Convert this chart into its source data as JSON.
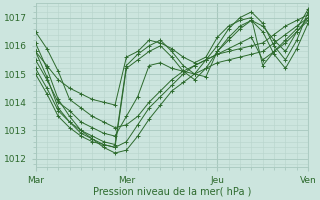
{
  "xlabel": "Pression niveau de la mer( hPa )",
  "ylim": [
    1011.7,
    1017.5
  ],
  "xlim": [
    0,
    72
  ],
  "yticks": [
    1012,
    1013,
    1014,
    1015,
    1016,
    1017
  ],
  "xtick_labels": [
    "Mar",
    "Mer",
    "Jeu",
    "Ven"
  ],
  "xtick_positions": [
    0,
    24,
    48,
    72
  ],
  "line_color": "#2d6a2d",
  "marker": "+",
  "bg_color": "#cce5de",
  "grid_minor_color": "#b8d4cc",
  "grid_major_color": "#a8c8be",
  "lines": [
    [
      0,
      1016.5,
      3,
      1015.9,
      6,
      1015.1,
      9,
      1014.1,
      12,
      1013.8,
      15,
      1013.5,
      18,
      1013.3,
      21,
      1013.1,
      24,
      1013.2,
      27,
      1013.5,
      30,
      1014.0,
      33,
      1014.4,
      36,
      1014.8,
      39,
      1015.1,
      42,
      1015.3,
      45,
      1015.5,
      48,
      1015.7,
      51,
      1015.8,
      54,
      1015.9,
      57,
      1016.0,
      60,
      1016.1,
      63,
      1016.4,
      66,
      1016.7,
      69,
      1016.9,
      72,
      1017.1
    ],
    [
      0,
      1016.1,
      3,
      1015.2,
      6,
      1014.1,
      9,
      1013.5,
      12,
      1013.0,
      15,
      1012.7,
      18,
      1012.4,
      21,
      1012.2,
      24,
      1012.3,
      27,
      1012.8,
      30,
      1013.4,
      33,
      1013.9,
      36,
      1014.4,
      39,
      1014.7,
      42,
      1015.0,
      45,
      1015.2,
      48,
      1015.4,
      51,
      1015.5,
      54,
      1015.6,
      57,
      1015.7,
      60,
      1015.8,
      63,
      1016.1,
      66,
      1016.4,
      69,
      1016.7,
      72,
      1017.0
    ],
    [
      0,
      1015.8,
      3,
      1014.9,
      6,
      1013.8,
      9,
      1013.3,
      12,
      1012.9,
      15,
      1012.7,
      18,
      1012.5,
      21,
      1012.4,
      24,
      1012.6,
      27,
      1013.2,
      30,
      1013.8,
      33,
      1014.2,
      36,
      1014.6,
      39,
      1015.0,
      42,
      1015.3,
      45,
      1015.5,
      48,
      1015.7,
      51,
      1015.9,
      54,
      1016.1,
      57,
      1016.3,
      60,
      1015.5,
      63,
      1015.8,
      66,
      1016.1,
      69,
      1016.5,
      72,
      1016.9
    ],
    [
      0,
      1015.5,
      3,
      1014.8,
      6,
      1014.0,
      9,
      1013.7,
      12,
      1013.3,
      15,
      1013.1,
      18,
      1012.9,
      21,
      1012.8,
      24,
      1013.5,
      27,
      1014.2,
      30,
      1015.3,
      33,
      1015.4,
      36,
      1015.2,
      39,
      1015.1,
      42,
      1015.0,
      45,
      1014.9,
      48,
      1015.8,
      51,
      1016.2,
      54,
      1016.6,
      57,
      1016.9,
      60,
      1016.7,
      63,
      1016.2,
      66,
      1015.8,
      69,
      1016.5,
      72,
      1017.0
    ],
    [
      0,
      1015.2,
      3,
      1014.5,
      6,
      1013.7,
      9,
      1013.3,
      12,
      1013.0,
      15,
      1012.8,
      18,
      1012.6,
      21,
      1012.5,
      24,
      1015.3,
      27,
      1015.7,
      30,
      1016.0,
      33,
      1016.2,
      36,
      1015.8,
      39,
      1015.3,
      42,
      1015.0,
      45,
      1015.5,
      48,
      1016.0,
      51,
      1016.6,
      54,
      1017.0,
      57,
      1017.2,
      60,
      1016.8,
      63,
      1016.0,
      66,
      1015.5,
      69,
      1016.2,
      72,
      1017.2
    ],
    [
      0,
      1015.0,
      3,
      1014.3,
      6,
      1013.5,
      9,
      1013.1,
      12,
      1012.8,
      15,
      1012.6,
      18,
      1012.5,
      21,
      1012.4,
      24,
      1015.2,
      27,
      1015.5,
      30,
      1015.8,
      33,
      1016.0,
      36,
      1015.6,
      39,
      1015.1,
      42,
      1014.8,
      45,
      1015.2,
      48,
      1015.8,
      51,
      1016.3,
      54,
      1016.7,
      57,
      1016.9,
      60,
      1016.5,
      63,
      1015.7,
      66,
      1015.2,
      69,
      1015.9,
      72,
      1016.8
    ],
    [
      0,
      1015.8,
      3,
      1015.3,
      6,
      1014.8,
      9,
      1014.5,
      12,
      1014.3,
      15,
      1014.1,
      18,
      1014.0,
      21,
      1013.9,
      24,
      1015.6,
      27,
      1015.8,
      30,
      1016.2,
      33,
      1016.1,
      36,
      1015.9,
      39,
      1015.6,
      42,
      1015.4,
      45,
      1015.6,
      48,
      1016.3,
      51,
      1016.7,
      54,
      1016.9,
      57,
      1017.0,
      60,
      1015.3,
      63,
      1015.8,
      66,
      1016.2,
      69,
      1016.6,
      72,
      1017.3
    ]
  ]
}
